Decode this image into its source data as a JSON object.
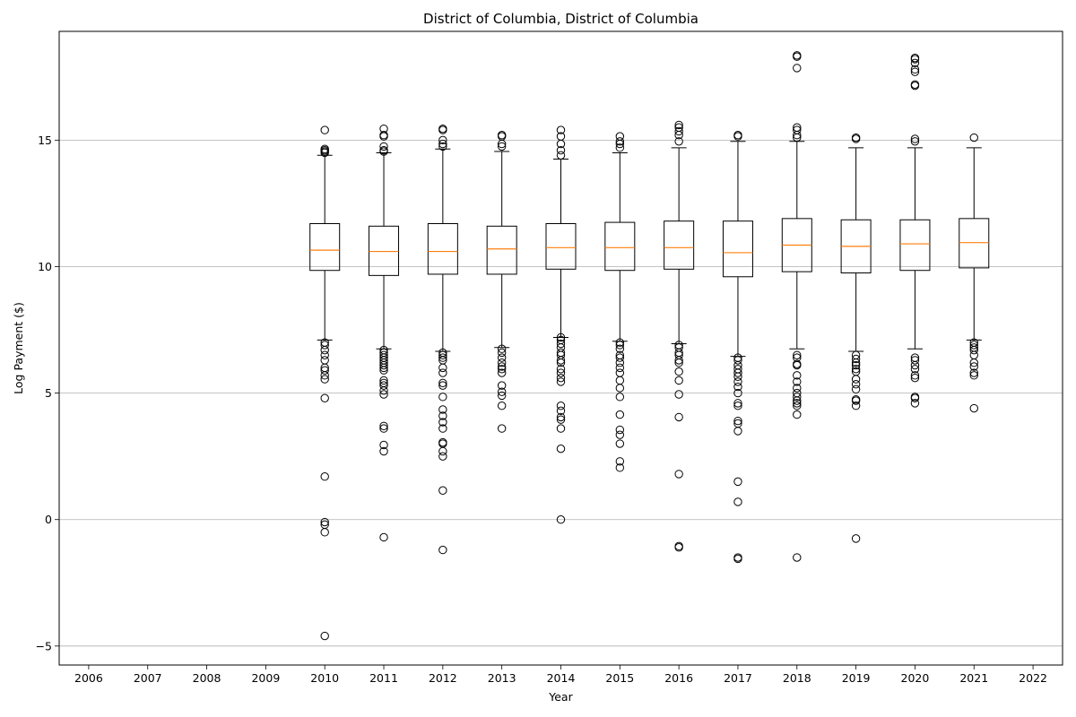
{
  "chart_data": {
    "type": "box",
    "title": "District of Columbia, District of Columbia",
    "xlabel": "Year",
    "ylabel": "Log Payment ($)",
    "categories": [
      "2006",
      "2007",
      "2008",
      "2009",
      "2010",
      "2011",
      "2012",
      "2013",
      "2014",
      "2015",
      "2016",
      "2017",
      "2018",
      "2019",
      "2020",
      "2021",
      "2022"
    ],
    "ylim": [
      -5.75,
      19.3
    ],
    "yticks": [
      -5,
      0,
      5,
      10,
      15
    ],
    "ytick_labels": [
      "−5",
      "0",
      "5",
      "10",
      "15"
    ],
    "grid": "y-major",
    "colors": {
      "box": "#000000",
      "median": "#ff7f0e",
      "grid": "#b0b0b0",
      "flier": "#000000"
    },
    "boxes": [
      {
        "category": "2010",
        "whislo": 7.1,
        "q1": 9.85,
        "med": 10.65,
        "q3": 11.7,
        "whishi": 14.4,
        "fliers": [
          15.4,
          14.65,
          14.6,
          14.55,
          14.5,
          7.0,
          6.9,
          6.7,
          6.5,
          6.3,
          6.0,
          5.9,
          5.7,
          5.55,
          4.8,
          1.7,
          -0.1,
          -0.2,
          -0.5,
          -4.6
        ]
      },
      {
        "category": "2011",
        "whislo": 6.75,
        "q1": 9.65,
        "med": 10.6,
        "q3": 11.6,
        "whishi": 14.5,
        "fliers": [
          15.45,
          15.2,
          15.15,
          14.75,
          14.6,
          14.55,
          6.7,
          6.6,
          6.5,
          6.4,
          6.3,
          6.2,
          6.1,
          6.0,
          5.9,
          5.5,
          5.4,
          5.3,
          5.1,
          4.95,
          3.7,
          3.6,
          2.95,
          2.7,
          -0.7
        ]
      },
      {
        "category": "2012",
        "whislo": 6.65,
        "q1": 9.7,
        "med": 10.6,
        "q3": 11.7,
        "whishi": 14.65,
        "fliers": [
          15.45,
          15.4,
          15.0,
          14.85,
          14.75,
          6.6,
          6.5,
          6.4,
          6.3,
          6.0,
          5.8,
          5.4,
          5.3,
          4.85,
          4.35,
          4.1,
          3.85,
          3.6,
          3.05,
          3.0,
          2.7,
          2.5,
          1.15,
          -1.2
        ]
      },
      {
        "category": "2013",
        "whislo": 6.8,
        "q1": 9.7,
        "med": 10.7,
        "q3": 11.6,
        "whishi": 14.55,
        "fliers": [
          15.2,
          15.15,
          14.85,
          14.75,
          6.75,
          6.6,
          6.4,
          6.2,
          6.05,
          5.95,
          5.8,
          5.3,
          5.05,
          4.9,
          4.5,
          3.6
        ]
      },
      {
        "category": "2014",
        "whislo": 7.2,
        "q1": 9.9,
        "med": 10.75,
        "q3": 11.7,
        "whishi": 14.25,
        "fliers": [
          15.4,
          15.15,
          14.85,
          14.6,
          14.4,
          7.2,
          7.1,
          6.95,
          6.8,
          6.6,
          6.5,
          6.3,
          6.2,
          5.95,
          5.8,
          5.6,
          5.45,
          4.5,
          4.3,
          4.05,
          3.95,
          3.6,
          2.8,
          0.0
        ]
      },
      {
        "category": "2015",
        "whislo": 7.05,
        "q1": 9.85,
        "med": 10.75,
        "q3": 11.75,
        "whishi": 14.5,
        "fliers": [
          15.15,
          14.95,
          14.85,
          14.7,
          7.0,
          6.9,
          6.75,
          6.5,
          6.4,
          6.2,
          6.0,
          5.8,
          5.5,
          5.2,
          4.85,
          4.15,
          3.55,
          3.35,
          3.0,
          2.3,
          2.05
        ]
      },
      {
        "category": "2016",
        "whislo": 6.95,
        "q1": 9.9,
        "med": 10.75,
        "q3": 11.8,
        "whishi": 14.7,
        "fliers": [
          15.6,
          15.5,
          15.35,
          15.2,
          14.95,
          6.9,
          6.8,
          6.6,
          6.5,
          6.3,
          6.2,
          5.85,
          5.5,
          4.95,
          4.05,
          1.8,
          -1.05,
          -1.1
        ]
      },
      {
        "category": "2017",
        "whislo": 6.45,
        "q1": 9.6,
        "med": 10.55,
        "q3": 11.8,
        "whishi": 14.95,
        "fliers": [
          15.2,
          15.15,
          6.4,
          6.3,
          6.1,
          5.95,
          5.8,
          5.65,
          5.45,
          5.25,
          5.0,
          4.6,
          4.5,
          3.9,
          3.8,
          3.5,
          1.5,
          0.7,
          -1.5,
          -1.55
        ]
      },
      {
        "category": "2018",
        "whislo": 6.75,
        "q1": 9.8,
        "med": 10.85,
        "q3": 11.9,
        "whishi": 14.95,
        "fliers": [
          18.35,
          18.3,
          17.85,
          15.5,
          15.4,
          15.2,
          15.1,
          6.5,
          6.4,
          6.15,
          6.1,
          5.7,
          5.45,
          5.2,
          5.0,
          4.85,
          4.7,
          4.6,
          4.5,
          4.15,
          -1.5
        ]
      },
      {
        "category": "2019",
        "whislo": 6.65,
        "q1": 9.75,
        "med": 10.8,
        "q3": 11.85,
        "whishi": 14.7,
        "fliers": [
          15.1,
          15.05,
          6.5,
          6.35,
          6.2,
          6.1,
          5.95,
          5.85,
          5.55,
          5.35,
          5.15,
          4.75,
          4.7,
          4.5,
          -0.75
        ]
      },
      {
        "category": "2020",
        "whislo": 6.75,
        "q1": 9.85,
        "med": 10.9,
        "q3": 11.85,
        "whishi": 14.7,
        "fliers": [
          18.25,
          18.2,
          18.05,
          17.8,
          17.7,
          17.2,
          17.15,
          15.05,
          14.95,
          6.4,
          6.3,
          6.1,
          5.95,
          5.7,
          5.6,
          4.85,
          4.8,
          4.6
        ]
      },
      {
        "category": "2021",
        "whislo": 7.1,
        "q1": 9.95,
        "med": 10.95,
        "q3": 11.9,
        "whishi": 14.7,
        "fliers": [
          15.1,
          7.0,
          6.9,
          6.8,
          6.7,
          6.5,
          6.2,
          6.05,
          5.8,
          5.7,
          4.4
        ]
      }
    ]
  }
}
